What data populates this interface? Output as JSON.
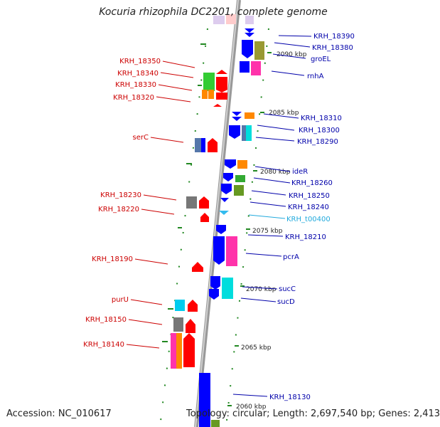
{
  "title": "Kocuria rhizophila DC2201, complete genome",
  "footer": {
    "accession": "Accession: NC_010617",
    "summary": "Topology: circular; Length: 2,697,540 bp; Genes: 2,413"
  },
  "colors": {
    "left_label": "#cc0000",
    "right_label": "#0000aa",
    "trna_label": "#22aadd",
    "backbone": "#888888",
    "dots": "#228822",
    "gene_red": "#ff0000",
    "gene_blue": "#0000ff",
    "gene_green": "#33cc33",
    "gene_orange": "#ff8800",
    "gene_olive": "#999933",
    "gene_magenta": "#ff33aa",
    "gene_cyan": "#00dddd",
    "gene_gray": "#777777",
    "gene_steel": "#5577aa",
    "gene_lavender": "#ddccee",
    "gene_pink": "#ffcccc"
  },
  "ticks": [
    "2090 kbp",
    "2085 kbp",
    "2080 kbp",
    "2075 kbp",
    "2070 kbp",
    "2065 kbp",
    "2060 kbp"
  ],
  "left_genes": [
    "KRH_18350",
    "KRH_18340",
    "KRH_18330",
    "KRH_18320",
    "serC",
    "KRH_18230",
    "KRH_18220",
    "KRH_18190",
    "purU",
    "KRH_18150",
    "KRH_18140"
  ],
  "right_genes": [
    "KRH_18390",
    "KRH_18380",
    "groEL",
    "rnhA",
    "KRH_18310",
    "KRH_18300",
    "KRH_18290",
    "ideR",
    "KRH_18260",
    "KRH_18250",
    "KRH_18240",
    "KRH_t00400",
    "KRH_18210",
    "pcrA",
    "sucC",
    "sucD",
    "KRH_18130"
  ]
}
